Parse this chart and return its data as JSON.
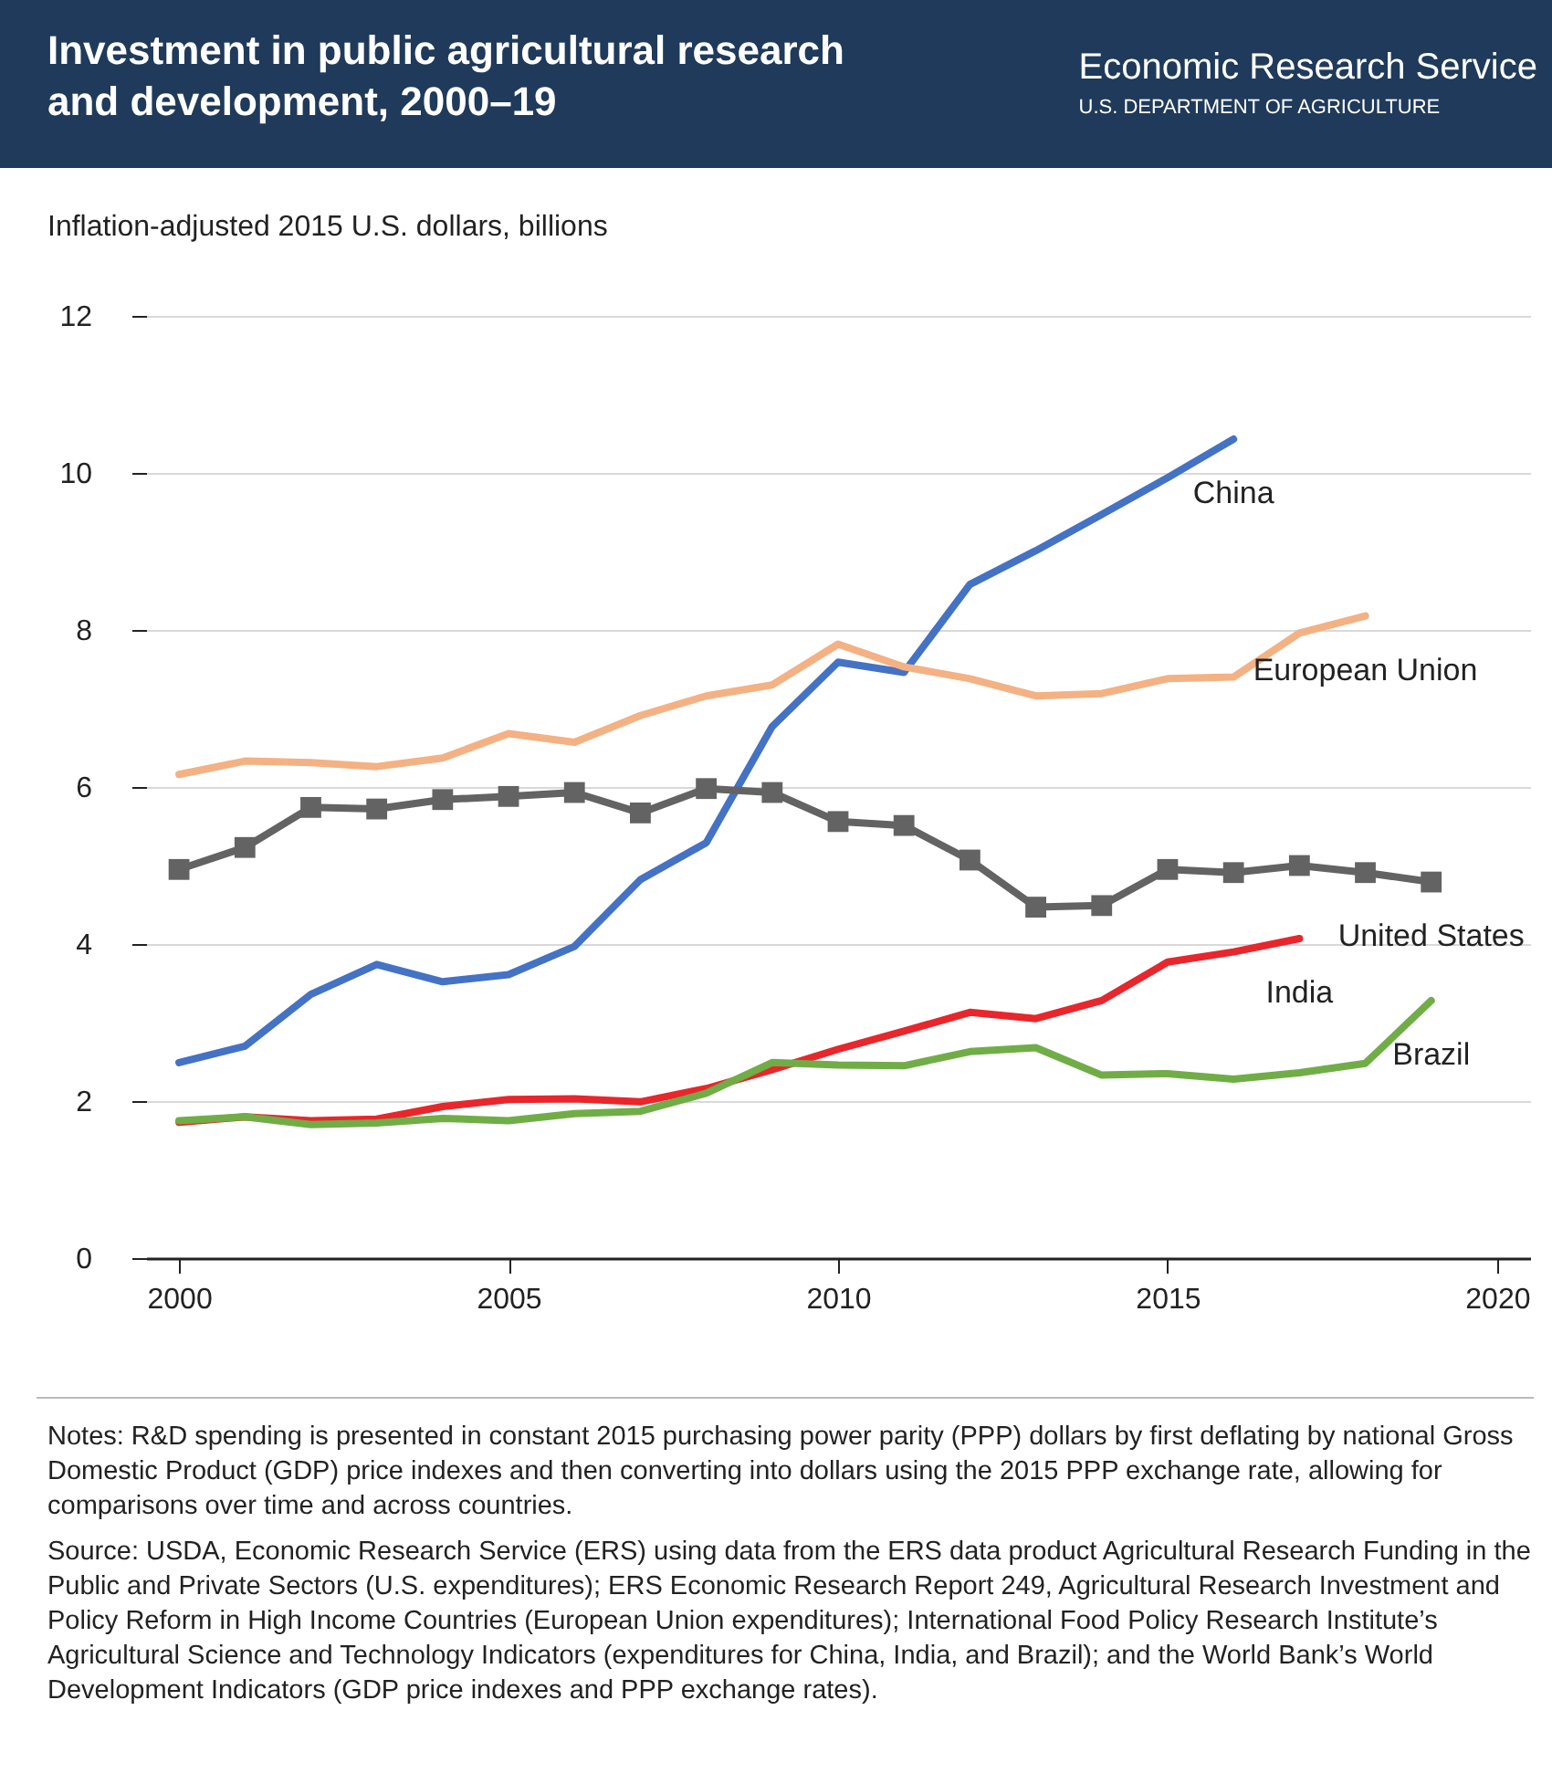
{
  "chart_data": {
    "type": "line",
    "title": "Investment in public agricultural research and development, 2000–19",
    "ylabel": "Inflation-adjusted 2015 U.S. dollars, billions",
    "x": [
      2000,
      2001,
      2002,
      2003,
      2004,
      2005,
      2006,
      2007,
      2008,
      2009,
      2010,
      2011,
      2012,
      2013,
      2014,
      2015,
      2016,
      2017,
      2018,
      2019
    ],
    "xlim": [
      1999.5,
      2020.5
    ],
    "xticks": [
      2000,
      2005,
      2010,
      2015,
      2020
    ],
    "ylim": [
      0,
      12
    ],
    "yticks": [
      0,
      2,
      4,
      6,
      8,
      10,
      12
    ],
    "grid": "y",
    "line_style": "solid",
    "series": [
      {
        "name": "China",
        "color": "#4472c4",
        "values": [
          2.49,
          2.7,
          3.36,
          3.74,
          3.52,
          3.61,
          3.97,
          4.82,
          5.29,
          6.77,
          7.59,
          7.46,
          8.58,
          9.01,
          9.47,
          9.94,
          10.43,
          null,
          null,
          null
        ]
      },
      {
        "name": "European Union",
        "color": "#f4b183",
        "values": [
          6.16,
          6.33,
          6.31,
          6.26,
          6.37,
          6.68,
          6.57,
          6.91,
          7.16,
          7.3,
          7.82,
          7.53,
          7.38,
          7.16,
          7.19,
          7.38,
          7.4,
          7.96,
          8.18,
          null
        ]
      },
      {
        "name": "United States",
        "color": "#636363",
        "marker": "square",
        "values": [
          4.95,
          5.23,
          5.74,
          5.72,
          5.84,
          5.88,
          5.93,
          5.67,
          5.98,
          5.93,
          5.56,
          5.51,
          5.07,
          4.47,
          4.49,
          4.95,
          4.91,
          5.0,
          4.91,
          4.79
        ]
      },
      {
        "name": "India",
        "color": "#e8262b",
        "values": [
          1.73,
          1.8,
          1.75,
          1.77,
          1.93,
          2.02,
          2.03,
          1.99,
          2.16,
          2.4,
          2.66,
          2.89,
          3.13,
          3.05,
          3.28,
          3.77,
          3.9,
          4.07,
          null,
          null
        ]
      },
      {
        "name": "Brazil",
        "color": "#70ad47",
        "values": [
          1.75,
          1.8,
          1.7,
          1.72,
          1.78,
          1.75,
          1.84,
          1.87,
          2.1,
          2.49,
          2.46,
          2.45,
          2.63,
          2.68,
          2.33,
          2.35,
          2.28,
          2.36,
          2.48,
          3.28
        ]
      }
    ],
    "annotations": [
      "Economic Research Service",
      "U.S. DEPARTMENT OF AGRICULTURE",
      "Notes: R&D spending is presented in constant 2015 purchasing power parity (PPP) dollars by first deflating by national Gross Domestic Product (GDP) price indexes and then converting into dollars using the 2015 PPP exchange rate, allowing for comparisons over time and across countries.",
      "Source: USDA, Economic Research Service (ERS) using data from the ERS data product Agricultural Research Funding in the Public and Private Sectors (U.S. expenditures); ERS Economic Research Report 249, Agricultural Research Investment and Policy Reform in High Income Countries (European Union expenditures); International Food Policy Research Institute’s Agricultural Science and Technology Indicators (expenditures for China, India, and Brazil); and the World Bank’s World Development Indicators (GDP price indexes and PPP exchange rates)."
    ]
  }
}
